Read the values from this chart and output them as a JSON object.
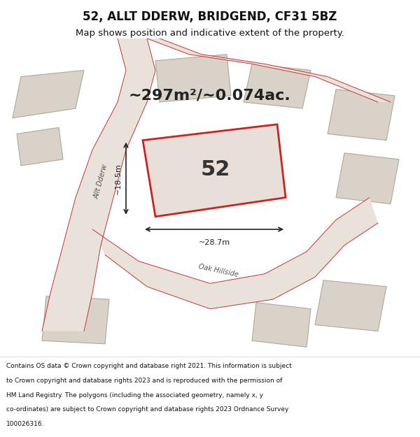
{
  "title": "52, ALLT DDERW, BRIDGEND, CF31 5BZ",
  "subtitle": "Map shows position and indicative extent of the property.",
  "area_text": "~297m²/~0.074ac.",
  "plot_number": "52",
  "dim_width": "~28.7m",
  "dim_height": "~18.5m",
  "footer": "Contains OS data © Crown copyright and database right 2021. This information is subject to Crown copyright and database rights 2023 and is reproduced with the permission of HM Land Registry. The polygons (including the associated geometry, namely x, y co-ordinates) are subject to Crown copyright and database rights 2023 Ordnance Survey 100026316.",
  "bg_color": "#f0eeec",
  "map_bg": "#f5f3f0",
  "road_color": "#e8e0d8",
  "highlight_color": "#e8e0d8",
  "plot_fill": "#e8e0d8",
  "plot_edge_color": "#cc2222",
  "road_line_color": "#cc3333",
  "building_fill": "#ddd8d0",
  "building_edge": "#aaa090"
}
